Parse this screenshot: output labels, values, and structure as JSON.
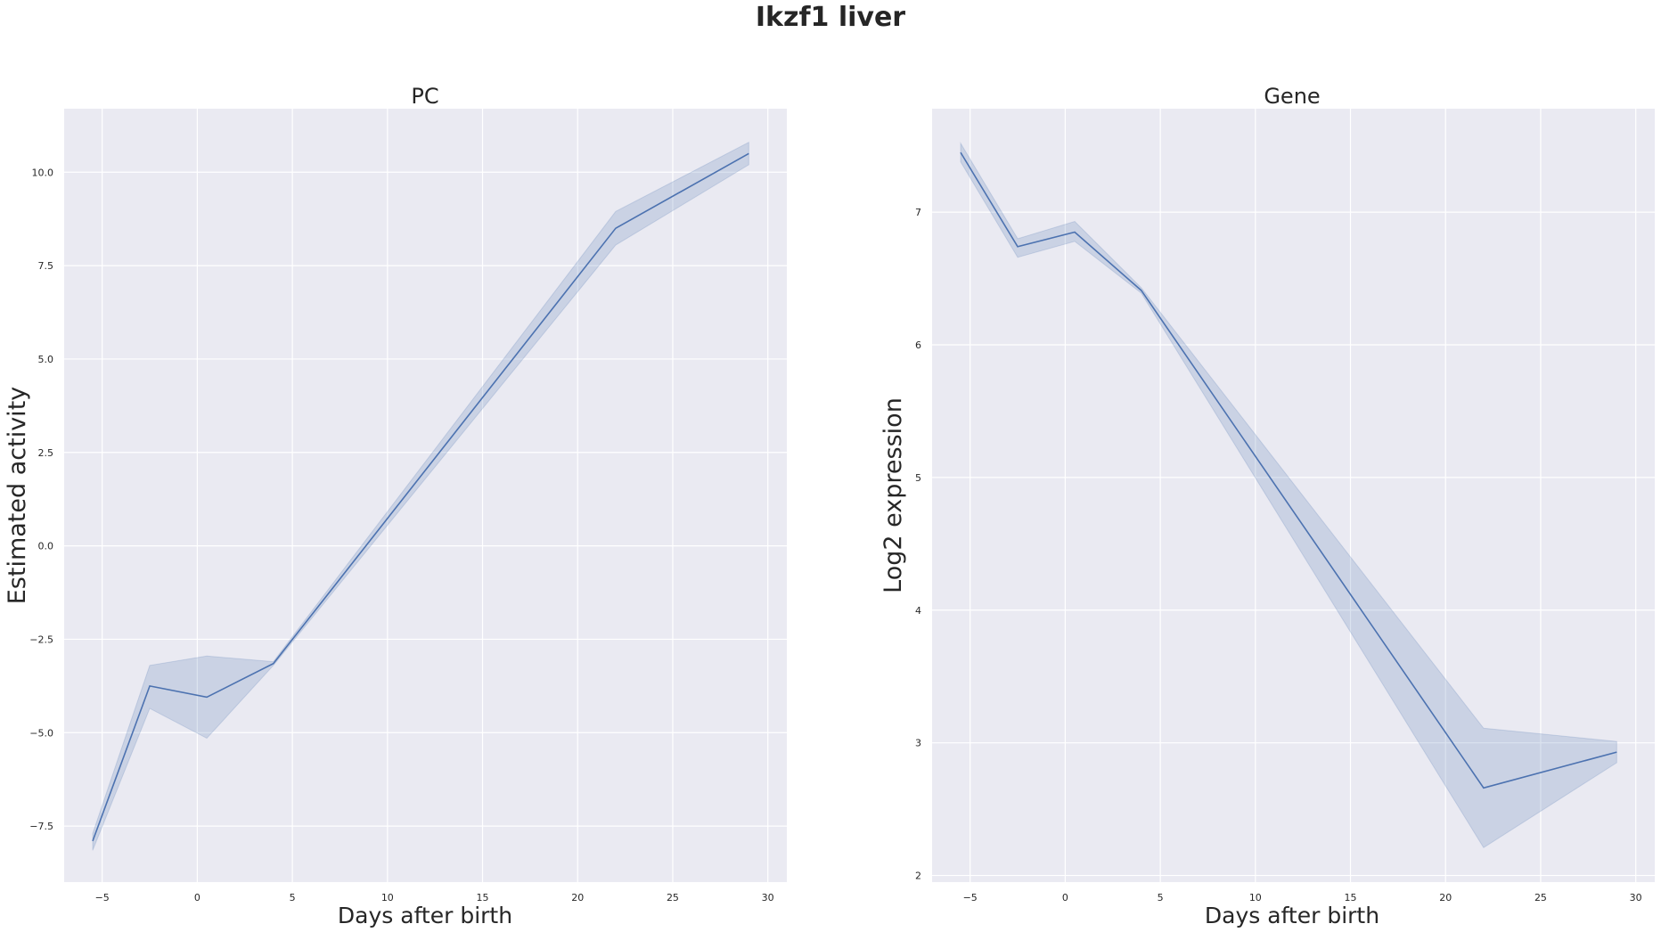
{
  "figure": {
    "title": "Ikzf1 liver"
  },
  "colors": {
    "panel_bg": "#eaeaf2",
    "grid": "#ffffff",
    "line": "#4c72b0",
    "band": "#4c72b0"
  },
  "chart_data": [
    {
      "type": "line",
      "title": "PC",
      "xlabel": "Days after birth",
      "ylabel": "Estimated activity",
      "xlim": [
        -7,
        31
      ],
      "ylim": [
        -9.0,
        11.7
      ],
      "xticks": [
        -5,
        0,
        5,
        10,
        15,
        20,
        25,
        30
      ],
      "xtick_labels": [
        "−5",
        "0",
        "5",
        "10",
        "15",
        "20",
        "25",
        "30"
      ],
      "yticks": [
        -7.5,
        -5.0,
        -2.5,
        0.0,
        2.5,
        5.0,
        7.5,
        10.0
      ],
      "ytick_labels": [
        "−7.5",
        "−5.0",
        "−2.5",
        "0.0",
        "2.5",
        "5.0",
        "7.5",
        "10.0"
      ],
      "grid": true,
      "series": [
        {
          "x": [
            -5.5,
            -2.5,
            0.5,
            4,
            22,
            29
          ],
          "y": [
            -7.9,
            -3.75,
            -4.05,
            -3.15,
            8.5,
            10.5
          ],
          "ci_low": [
            -8.15,
            -4.35,
            -5.15,
            -3.2,
            8.05,
            10.2
          ],
          "ci_high": [
            -7.7,
            -3.2,
            -2.95,
            -3.1,
            8.95,
            10.8
          ]
        }
      ]
    },
    {
      "type": "line",
      "title": "Gene",
      "xlabel": "Days after birth",
      "ylabel": "Log2 expression",
      "xlim": [
        -7,
        31
      ],
      "ylim": [
        1.95,
        7.78
      ],
      "xticks": [
        -5,
        0,
        5,
        10,
        15,
        20,
        25,
        30
      ],
      "xtick_labels": [
        "−5",
        "0",
        "5",
        "10",
        "15",
        "20",
        "25",
        "30"
      ],
      "yticks": [
        2,
        3,
        4,
        5,
        6,
        7
      ],
      "ytick_labels": [
        "2",
        "3",
        "4",
        "5",
        "6",
        "7"
      ],
      "grid": true,
      "series": [
        {
          "x": [
            -5.5,
            -2.5,
            0.5,
            4,
            22,
            29
          ],
          "y": [
            7.45,
            6.74,
            6.85,
            6.41,
            2.66,
            2.93
          ],
          "ci_low": [
            7.38,
            6.66,
            6.78,
            6.39,
            2.21,
            2.85
          ],
          "ci_high": [
            7.52,
            6.8,
            6.93,
            6.43,
            3.11,
            3.01
          ]
        }
      ]
    }
  ]
}
